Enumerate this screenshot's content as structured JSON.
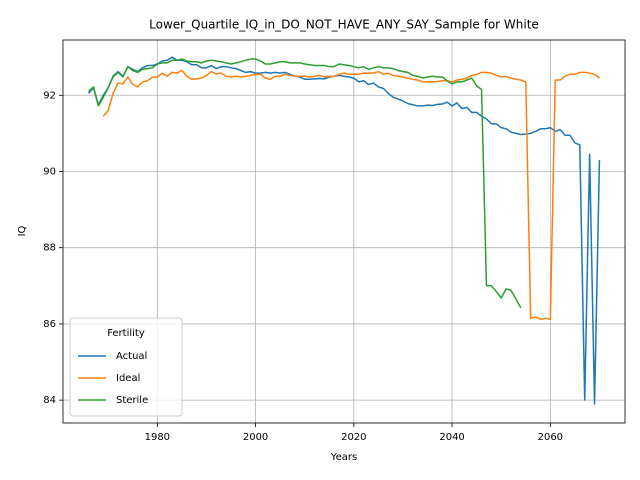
{
  "chart_data": {
    "type": "line",
    "title": "Lower_Quartile_IQ_in_DO_NOT_HAVE_ANY_SAY_Sample for White",
    "xlabel": "Years",
    "ylabel": "IQ",
    "x": [
      1966,
      1967,
      1968,
      1969,
      1970,
      1971,
      1972,
      1973,
      1974,
      1975,
      1976,
      1977,
      1978,
      1979,
      1980,
      1981,
      1982,
      1983,
      1984,
      1985,
      1986,
      1987,
      1988,
      1989,
      1990,
      1991,
      1992,
      1993,
      1994,
      1995,
      1996,
      1997,
      1998,
      1999,
      2000,
      2001,
      2002,
      2003,
      2004,
      2005,
      2006,
      2007,
      2008,
      2009,
      2010,
      2011,
      2012,
      2013,
      2014,
      2015,
      2016,
      2017,
      2018,
      2019,
      2020,
      2021,
      2022,
      2023,
      2024,
      2025,
      2026,
      2027,
      2028,
      2029,
      2030,
      2031,
      2032,
      2033,
      2034,
      2035,
      2036,
      2037,
      2038,
      2039,
      2040,
      2041,
      2042,
      2043,
      2044,
      2045,
      2046,
      2047,
      2048,
      2049,
      2050,
      2051,
      2052,
      2053,
      2054,
      2055,
      2056,
      2057,
      2058,
      2059,
      2060,
      2061,
      2062,
      2063,
      2064,
      2065,
      2066,
      2067,
      2068,
      2069,
      2070
    ],
    "series": [
      {
        "name": "Actual",
        "color": "#1f77b4",
        "values": [
          92.05,
          92.2,
          91.75,
          92.0,
          92.2,
          92.5,
          92.62,
          92.5,
          92.75,
          92.68,
          92.62,
          92.72,
          92.78,
          92.78,
          92.82,
          92.9,
          92.92,
          93.0,
          92.92,
          92.92,
          92.88,
          92.8,
          92.8,
          92.72,
          92.72,
          92.78,
          92.7,
          92.75,
          92.75,
          92.72,
          92.7,
          92.65,
          92.6,
          92.62,
          92.58,
          92.58,
          92.6,
          92.58,
          92.6,
          92.58,
          92.6,
          92.55,
          92.5,
          92.48,
          92.42,
          92.42,
          92.43,
          92.44,
          92.43,
          92.48,
          92.5,
          92.52,
          92.5,
          92.48,
          92.45,
          92.35,
          92.38,
          92.28,
          92.32,
          92.22,
          92.18,
          92.05,
          91.95,
          91.9,
          91.85,
          91.78,
          91.75,
          91.72,
          91.72,
          91.74,
          91.73,
          91.76,
          91.77,
          91.82,
          91.72,
          91.8,
          91.65,
          91.68,
          91.55,
          91.55,
          91.45,
          91.38,
          91.25,
          91.25,
          91.15,
          91.12,
          91.03,
          91.0,
          90.97,
          90.98,
          91.0,
          91.05,
          91.12,
          91.12,
          91.15,
          91.05,
          91.1,
          90.95,
          90.95,
          90.75,
          90.7,
          84.0,
          90.45,
          83.9,
          90.3
        ]
      },
      {
        "name": "Ideal",
        "color": "#ff7f0e",
        "values": [
          null,
          null,
          null,
          91.45,
          91.6,
          92.05,
          92.32,
          92.3,
          92.48,
          92.28,
          92.22,
          92.35,
          92.38,
          92.48,
          92.48,
          92.58,
          92.5,
          92.6,
          92.58,
          92.65,
          92.5,
          92.42,
          92.43,
          92.45,
          92.52,
          92.62,
          92.56,
          92.58,
          92.5,
          92.48,
          92.5,
          92.48,
          92.5,
          92.52,
          92.55,
          92.55,
          92.45,
          92.42,
          92.5,
          92.5,
          92.55,
          92.52,
          92.5,
          92.5,
          92.5,
          92.48,
          92.5,
          92.52,
          92.48,
          92.5,
          92.5,
          92.55,
          92.58,
          92.55,
          92.55,
          92.55,
          92.58,
          92.58,
          92.58,
          92.62,
          92.55,
          92.58,
          92.52,
          92.5,
          92.48,
          92.45,
          92.42,
          92.4,
          92.35,
          92.35,
          92.35,
          92.36,
          92.38,
          92.38,
          92.35,
          92.4,
          92.42,
          92.45,
          92.52,
          92.55,
          92.6,
          92.6,
          92.58,
          92.52,
          92.48,
          92.5,
          92.45,
          92.42,
          92.4,
          92.35,
          86.15,
          86.18,
          86.12,
          86.15,
          86.12,
          92.4,
          92.4,
          92.5,
          92.55,
          92.55,
          92.6,
          92.6,
          92.58,
          92.55,
          92.45
        ]
      },
      {
        "name": "Sterile",
        "color": "#2ca02c",
        "values": [
          92.1,
          92.22,
          91.72,
          91.95,
          92.2,
          92.48,
          92.6,
          92.48,
          92.75,
          92.65,
          92.6,
          92.68,
          92.7,
          92.72,
          92.82,
          92.85,
          92.85,
          92.92,
          92.92,
          92.95,
          92.9,
          92.88,
          92.88,
          92.85,
          92.9,
          92.92,
          92.9,
          92.88,
          92.85,
          92.82,
          92.85,
          92.88,
          92.92,
          92.95,
          92.95,
          92.9,
          92.82,
          92.82,
          92.85,
          92.88,
          92.88,
          92.85,
          92.85,
          92.85,
          92.82,
          92.8,
          92.78,
          92.78,
          92.78,
          92.75,
          92.75,
          92.82,
          92.8,
          92.78,
          92.75,
          92.72,
          92.75,
          92.68,
          92.72,
          92.75,
          92.72,
          92.72,
          92.7,
          92.65,
          92.62,
          92.6,
          92.52,
          92.5,
          92.45,
          92.48,
          92.5,
          92.48,
          92.48,
          92.38,
          92.3,
          92.35,
          92.35,
          92.4,
          92.45,
          92.25,
          92.15,
          87.0,
          87.0,
          86.85,
          86.68,
          86.92,
          86.88,
          86.65,
          86.42,
          null,
          null,
          null,
          null,
          null,
          null,
          null,
          null,
          null,
          null,
          null,
          null,
          null,
          null,
          null,
          null
        ]
      }
    ],
    "legend_title": "Fertility",
    "legend": "lower left",
    "xlim": [
      1960.8,
      2075.2
    ],
    "xticks": [
      1980,
      2000,
      2020,
      2040,
      2060
    ],
    "ylim": [
      83.4,
      93.45
    ],
    "yticks": [
      84,
      86,
      88,
      90,
      92
    ],
    "grid": true
  }
}
